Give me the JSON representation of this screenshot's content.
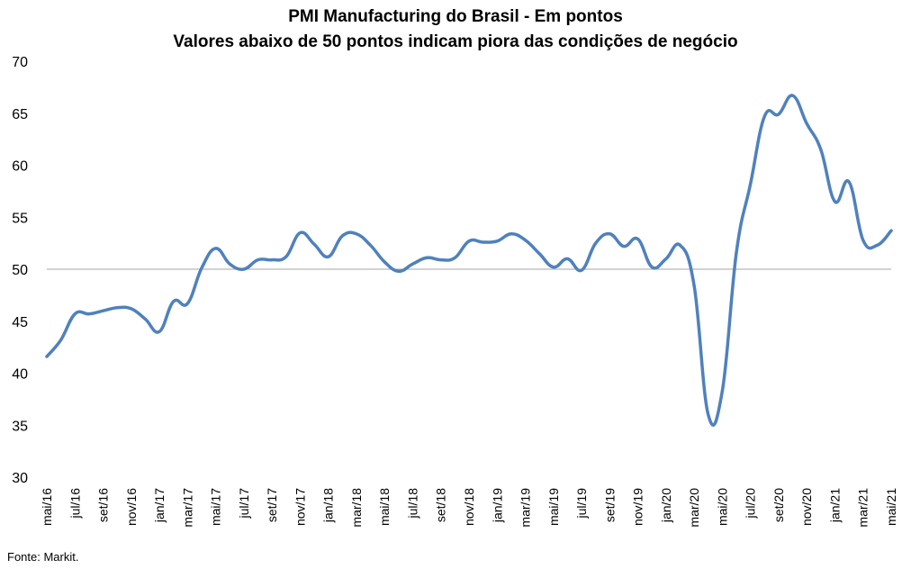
{
  "chart_data": {
    "type": "line",
    "title": "PMI Manufacturing do Brasil - Em pontos",
    "subtitle": "Valores abaixo de 50 pontos indicam piora das condições de negócio",
    "source": "Fonte: Markit.",
    "ylim": [
      30,
      70
    ],
    "yticks": [
      "30",
      "35",
      "40",
      "45",
      "50",
      "55",
      "60",
      "65",
      "70"
    ],
    "reference_line": 50,
    "grid": false,
    "color": "#4f81bd",
    "x": [
      "mai/16",
      "jun/16",
      "jul/16",
      "ago/16",
      "set/16",
      "out/16",
      "nov/16",
      "dez/16",
      "jan/17",
      "fev/17",
      "mar/17",
      "abr/17",
      "mai/17",
      "jun/17",
      "jul/17",
      "ago/17",
      "set/17",
      "out/17",
      "nov/17",
      "dez/17",
      "jan/18",
      "fev/18",
      "mar/18",
      "abr/18",
      "mai/18",
      "jun/18",
      "jul/18",
      "ago/18",
      "set/18",
      "out/18",
      "nov/18",
      "dez/18",
      "jan/19",
      "fev/19",
      "mar/19",
      "abr/19",
      "mai/19",
      "jun/19",
      "jul/19",
      "ago/19",
      "set/19",
      "out/19",
      "nov/19",
      "dez/19",
      "jan/20",
      "fev/20",
      "mar/20",
      "abr/20",
      "mai/20",
      "jun/20",
      "jul/20",
      "ago/20",
      "set/20",
      "out/20",
      "nov/20",
      "dez/20",
      "jan/21",
      "fev/21",
      "mar/21",
      "abr/21",
      "mai/21"
    ],
    "xtick_labels": [
      "mai/16",
      "jul/16",
      "set/16",
      "nov/16",
      "jan/17",
      "mar/17",
      "mai/17",
      "jul/17",
      "set/17",
      "nov/17",
      "jan/18",
      "mar/18",
      "mai/18",
      "jul/18",
      "set/18",
      "nov/18",
      "jan/19",
      "mar/19",
      "mai/19",
      "jul/19",
      "set/19",
      "nov/19",
      "jan/20",
      "mar/20",
      "mai/20",
      "jul/20",
      "set/20",
      "nov/20",
      "jan/21",
      "mar/21",
      "mai/21"
    ],
    "series": [
      {
        "values": [
          41.6,
          43.2,
          45.7,
          45.7,
          46.0,
          46.3,
          46.2,
          45.2,
          44.0,
          46.9,
          46.7,
          50.1,
          52.0,
          50.5,
          50.0,
          50.9,
          50.9,
          51.2,
          53.5,
          52.4,
          51.2,
          53.2,
          53.4,
          52.3,
          50.7,
          49.8,
          50.5,
          51.1,
          50.9,
          51.1,
          52.7,
          52.6,
          52.7,
          53.4,
          52.8,
          51.5,
          50.2,
          51.0,
          49.9,
          52.5,
          53.4,
          52.2,
          52.9,
          50.2,
          51.0,
          52.3,
          48.4,
          36.0,
          38.3,
          51.6,
          58.2,
          64.7,
          64.9,
          66.7,
          64.0,
          61.5,
          56.5,
          58.4,
          52.8,
          52.3,
          53.7
        ]
      }
    ]
  }
}
